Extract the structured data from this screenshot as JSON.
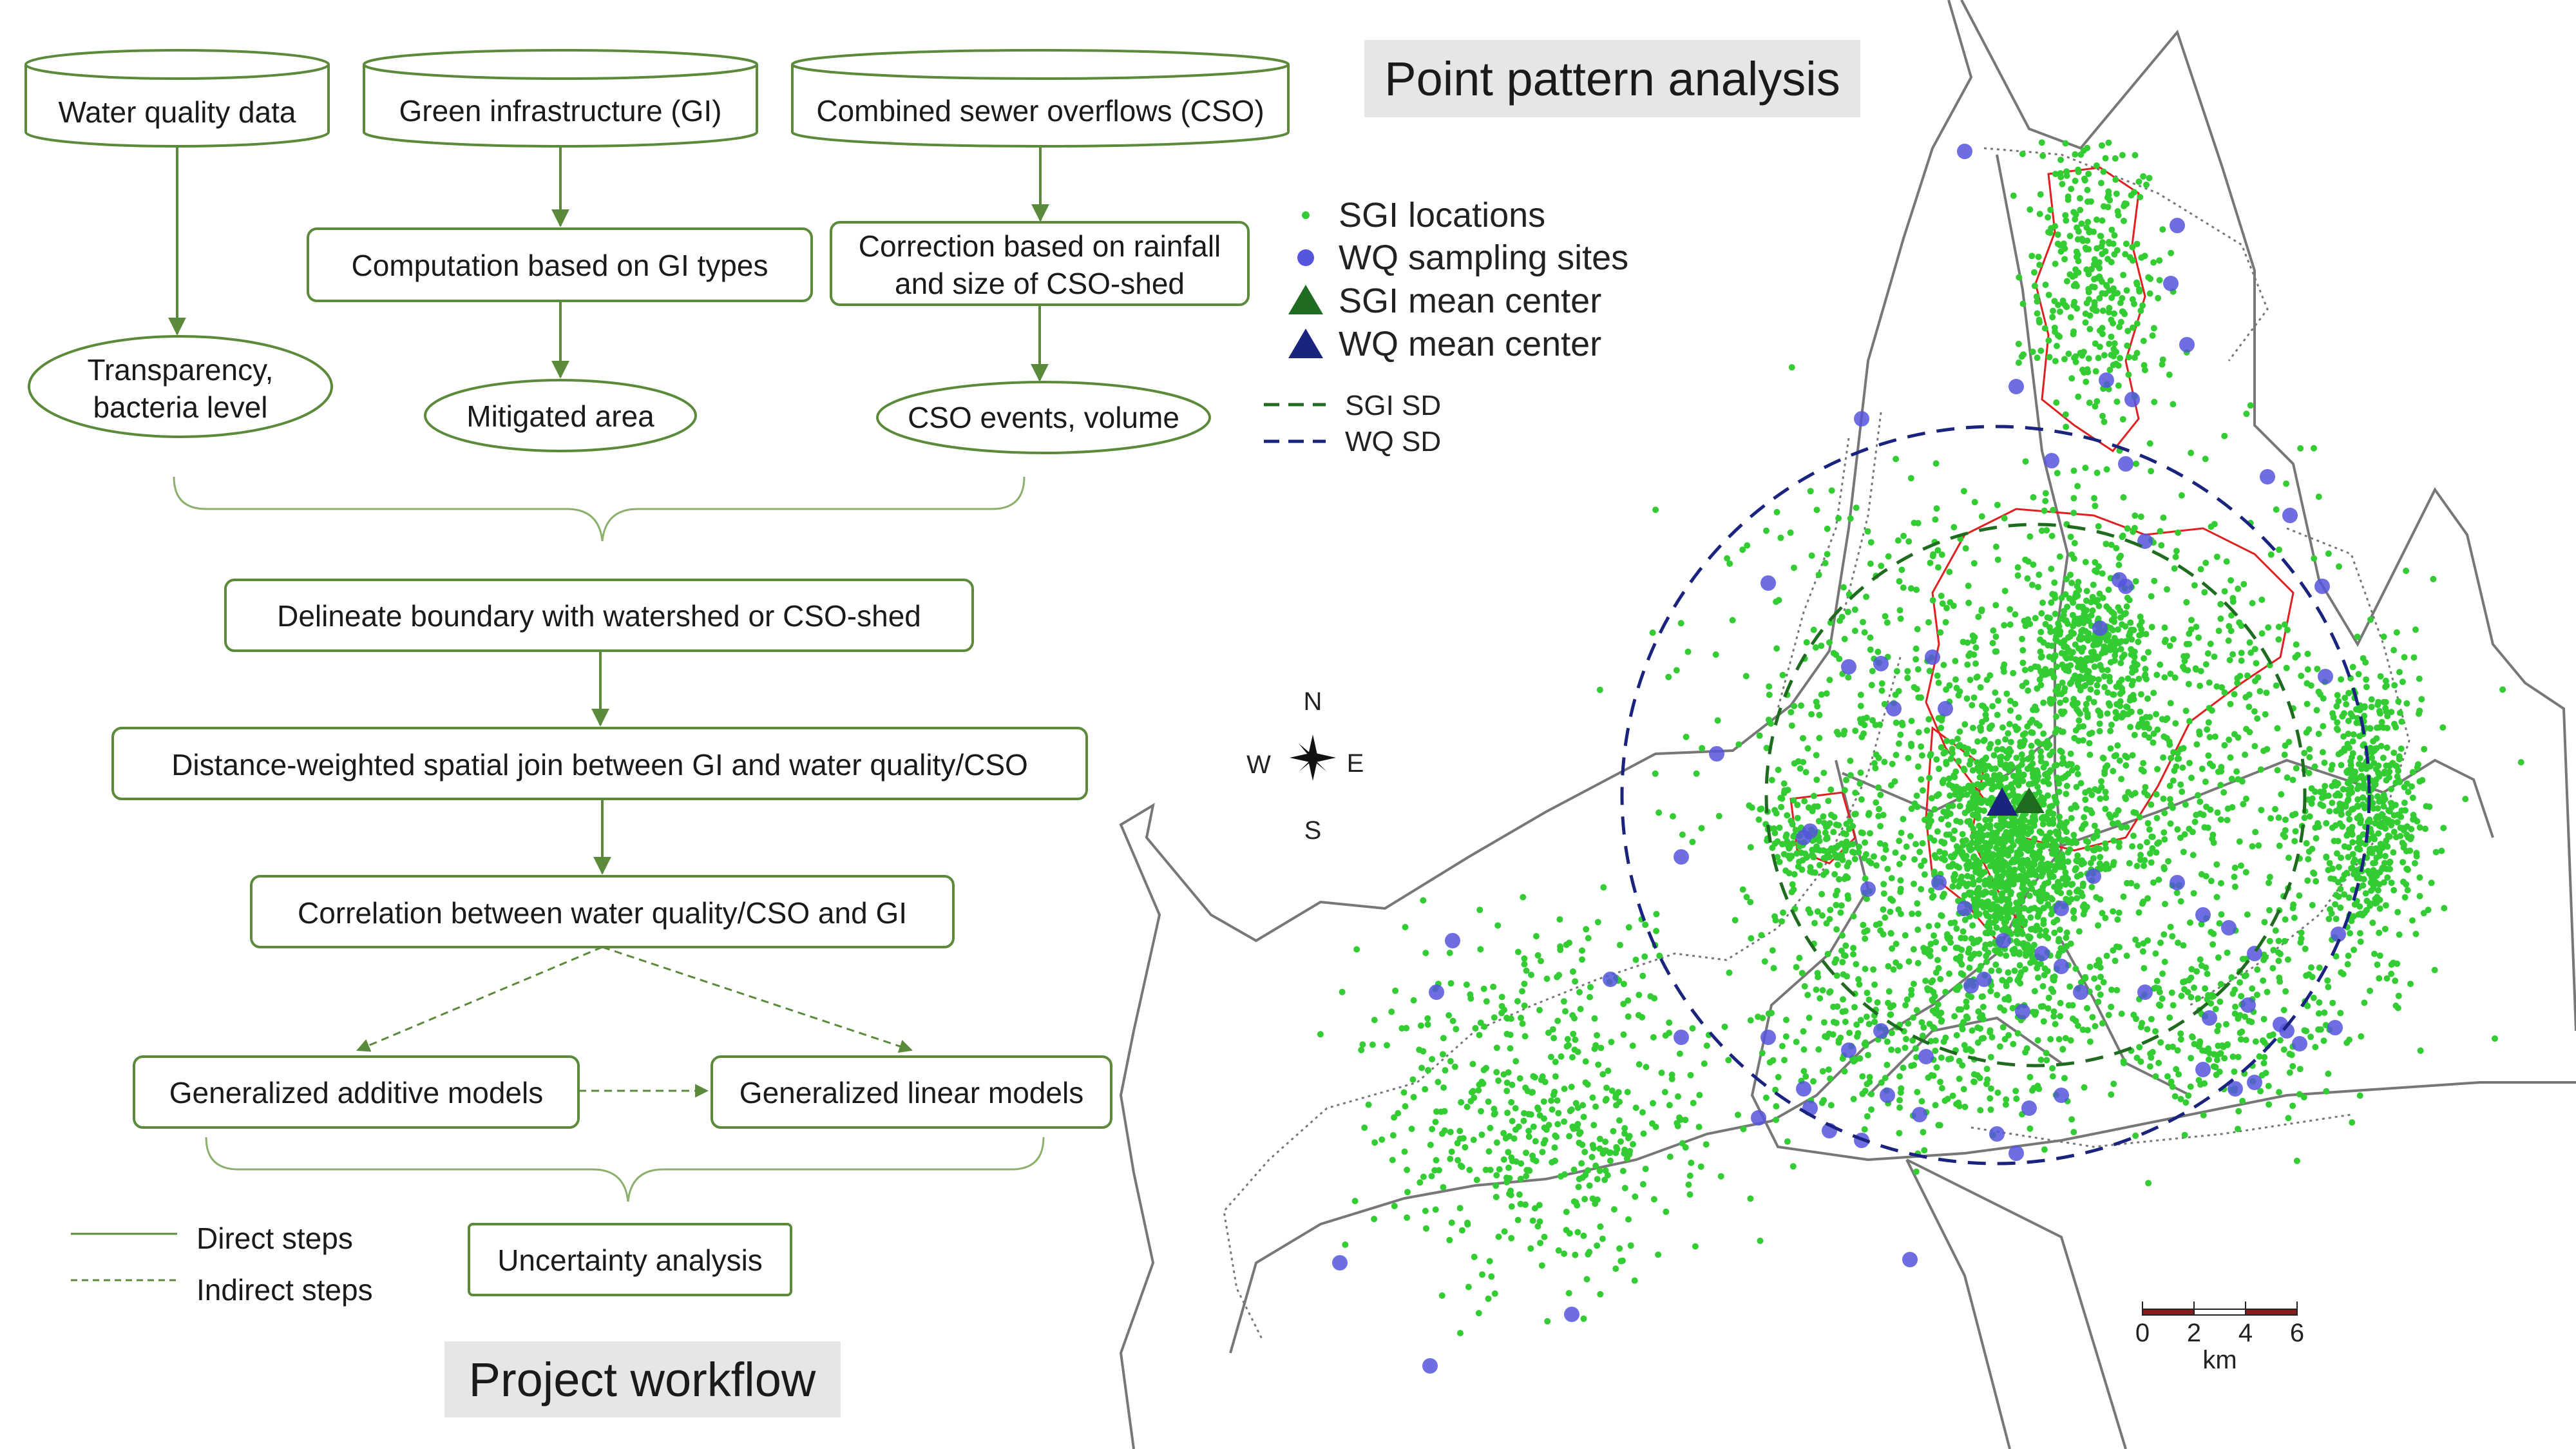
{
  "workflow": {
    "sources": {
      "water_quality": "Water quality data",
      "green_infrastructure": "Green infrastructure (GI)",
      "cso": "Combined sewer overflows (CSO)"
    },
    "process": {
      "gi_computation": "Computation based on GI types",
      "cso_correction_line1": "Correction based on rainfall",
      "cso_correction_line2": "and size of CSO-shed"
    },
    "outputs": {
      "transparency_line1": "Transparency,",
      "transparency_line2": "bacteria level",
      "mitigated_area": "Mitigated area",
      "cso_events": "CSO events, volume"
    },
    "steps": {
      "delineate": "Delineate boundary with watershed or CSO-shed",
      "spatial_join": "Distance-weighted spatial join between GI and water quality/CSO",
      "correlation": "Correlation between water quality/CSO and GI",
      "gam": "Generalized additive models",
      "glm": "Generalized linear models",
      "uncertainty": "Uncertainty analysis"
    },
    "legend": {
      "direct": "Direct steps",
      "indirect": "Indirect steps"
    },
    "title": "Project workflow"
  },
  "map": {
    "title": "Point pattern analysis",
    "legend": {
      "sgi_locations": "SGI locations",
      "wq_sites": "WQ sampling sites",
      "sgi_mean_center": "SGI mean center",
      "wq_mean_center": "WQ mean center",
      "sgi_sd": "SGI SD",
      "wq_sd": "WQ SD"
    },
    "compass": {
      "n": "N",
      "s": "S",
      "e": "E",
      "w": "W"
    },
    "scale": {
      "ticks": [
        "0",
        "2",
        "4",
        "6"
      ],
      "unit": "km"
    },
    "colors": {
      "sgi": "#33cc33",
      "wq": "#5555dd",
      "sgi_sd": "#1f6b1f",
      "wq_sd": "#1a237e",
      "cso_shed": "#e02020",
      "boundary": "#777777"
    }
  },
  "colors": {
    "workflow_green": "#5a8a3a"
  }
}
